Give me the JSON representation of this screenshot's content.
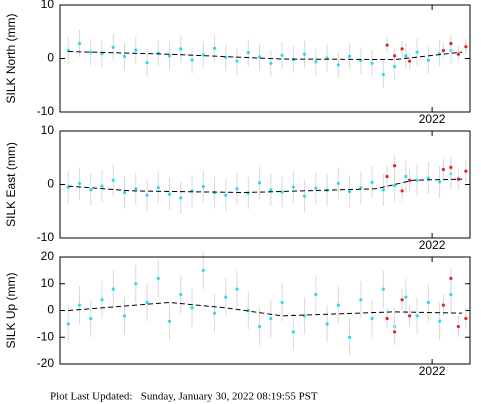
{
  "chart_data": [
    {
      "type": "scatter",
      "ylabel": "SILK North (mm)",
      "xlim": [
        2021.008,
        2022.101
      ],
      "xticks": [
        2022
      ],
      "ylim": [
        -10,
        10
      ],
      "yticks": [
        -10,
        0,
        10
      ],
      "series": [
        {
          "color": "#22e0f0",
          "x": [
            2021.03,
            2021.06,
            2021.09,
            2021.12,
            2021.15,
            2021.18,
            2021.21,
            2021.24,
            2021.27,
            2021.3,
            2021.33,
            2021.36,
            2021.39,
            2021.42,
            2021.45,
            2021.48,
            2021.51,
            2021.54,
            2021.57,
            2021.6,
            2021.63,
            2021.66,
            2021.69,
            2021.72,
            2021.75,
            2021.78,
            2021.81,
            2021.84,
            2021.87,
            2021.9,
            2021.93,
            2021.96,
            2021.99,
            2022.02,
            2022.05
          ],
          "values": [
            1.5,
            2.8,
            1.2,
            0.9,
            2.1,
            0.4,
            1.6,
            -0.8,
            1.0,
            0.5,
            1.8,
            -0.3,
            0.7,
            1.9,
            0.2,
            -0.5,
            1.1,
            0.3,
            -0.9,
            0.6,
            -0.2,
            0.8,
            -0.6,
            0.1,
            -1.2,
            0.4,
            -0.4,
            -0.9,
            -3.0,
            -1.5,
            0.5,
            1.2,
            -0.3,
            0.9,
            1.5
          ],
          "errors": 2.5
        },
        {
          "color": "#e82020",
          "x": [
            2021.88,
            2021.9,
            2021.92,
            2021.94,
            2022.03,
            2022.05,
            2022.07,
            2022.09
          ],
          "values": [
            2.5,
            0.5,
            1.8,
            -0.5,
            1.5,
            2.8,
            0.8,
            2.2
          ],
          "errors": 1.5
        },
        {
          "color": "#000000",
          "style": "dashed",
          "x": [
            2021.03,
            2021.3,
            2021.6,
            2021.9,
            2022.08
          ],
          "values": [
            1.3,
            0.8,
            -0.1,
            -0.2,
            1.2
          ]
        }
      ]
    },
    {
      "type": "scatter",
      "ylabel": "SILK East (mm)",
      "xlim": [
        2021.008,
        2022.101
      ],
      "xticks": [
        2022
      ],
      "ylim": [
        -10,
        10
      ],
      "yticks": [
        -10,
        0,
        10
      ],
      "series": [
        {
          "color": "#22e0f0",
          "x": [
            2021.03,
            2021.06,
            2021.09,
            2021.12,
            2021.15,
            2021.18,
            2021.21,
            2021.24,
            2021.27,
            2021.3,
            2021.33,
            2021.36,
            2021.39,
            2021.42,
            2021.45,
            2021.48,
            2021.51,
            2021.54,
            2021.57,
            2021.6,
            2021.63,
            2021.66,
            2021.69,
            2021.72,
            2021.75,
            2021.78,
            2021.81,
            2021.84,
            2021.87,
            2021.9,
            2021.93,
            2021.96,
            2021.99,
            2022.02,
            2022.05
          ],
          "values": [
            -0.5,
            0.2,
            -1.0,
            -0.3,
            0.8,
            -1.5,
            -0.8,
            -2.0,
            -0.6,
            -1.8,
            -2.5,
            -1.2,
            -0.4,
            -1.5,
            -2.0,
            -0.8,
            -1.6,
            0.3,
            -1.0,
            -1.4,
            -0.5,
            -2.2,
            -0.7,
            -1.1,
            0.2,
            -1.3,
            -0.6,
            0.4,
            -1.0,
            -0.2,
            1.5,
            0.8,
            1.2,
            0.5,
            2.0
          ],
          "errors": 3
        },
        {
          "color": "#e82020",
          "x": [
            2021.88,
            2021.9,
            2021.92,
            2021.94,
            2022.03,
            2022.05,
            2022.07,
            2022.09
          ],
          "values": [
            1.5,
            3.5,
            -1.2,
            0.8,
            2.8,
            3.2,
            1.0,
            2.5
          ],
          "errors": 2
        },
        {
          "color": "#000000",
          "style": "dashed",
          "x": [
            2021.03,
            2021.2,
            2021.5,
            2021.85,
            2021.95,
            2022.08
          ],
          "values": [
            -0.3,
            -1.2,
            -1.5,
            -0.8,
            0.8,
            1.0
          ]
        }
      ]
    },
    {
      "type": "scatter",
      "ylabel": "SILK Up (mm)",
      "xlim": [
        2021.008,
        2022.101
      ],
      "xticks": [
        2022
      ],
      "ylim": [
        -20,
        20
      ],
      "yticks": [
        -20,
        -10,
        0,
        10,
        20
      ],
      "series": [
        {
          "color": "#22e0f0",
          "x": [
            2021.03,
            2021.06,
            2021.09,
            2021.12,
            2021.15,
            2021.18,
            2021.21,
            2021.24,
            2021.27,
            2021.3,
            2021.33,
            2021.36,
            2021.39,
            2021.42,
            2021.45,
            2021.48,
            2021.51,
            2021.54,
            2021.57,
            2021.6,
            2021.63,
            2021.66,
            2021.69,
            2021.72,
            2021.75,
            2021.78,
            2021.81,
            2021.84,
            2021.87,
            2021.9,
            2021.93,
            2021.96,
            2021.99,
            2022.02,
            2022.05
          ],
          "values": [
            -5,
            2,
            -3,
            4,
            8,
            -2,
            10,
            3,
            12,
            -4,
            6,
            1,
            15,
            -1,
            5,
            8,
            0,
            -6,
            -3,
            3,
            -8,
            -2,
            6,
            -5,
            2,
            -10,
            4,
            -3,
            8,
            -6,
            5,
            -2,
            3,
            -4,
            6
          ],
          "errors": 7
        },
        {
          "color": "#e82020",
          "x": [
            2021.88,
            2021.9,
            2021.92,
            2021.94,
            2022.03,
            2022.05,
            2022.07,
            2022.09
          ],
          "values": [
            -3,
            -8,
            4,
            -2,
            2,
            12,
            -6,
            -3
          ],
          "errors": 4
        },
        {
          "color": "#000000",
          "style": "dashed",
          "x": [
            2021.03,
            2021.3,
            2021.45,
            2021.6,
            2021.9,
            2022.08
          ],
          "values": [
            0,
            3,
            1,
            -2,
            -0.5,
            -1
          ]
        }
      ]
    }
  ],
  "footer": "Plot Last Updated:   Sunday, January 30, 2022 08:19:55 PST"
}
